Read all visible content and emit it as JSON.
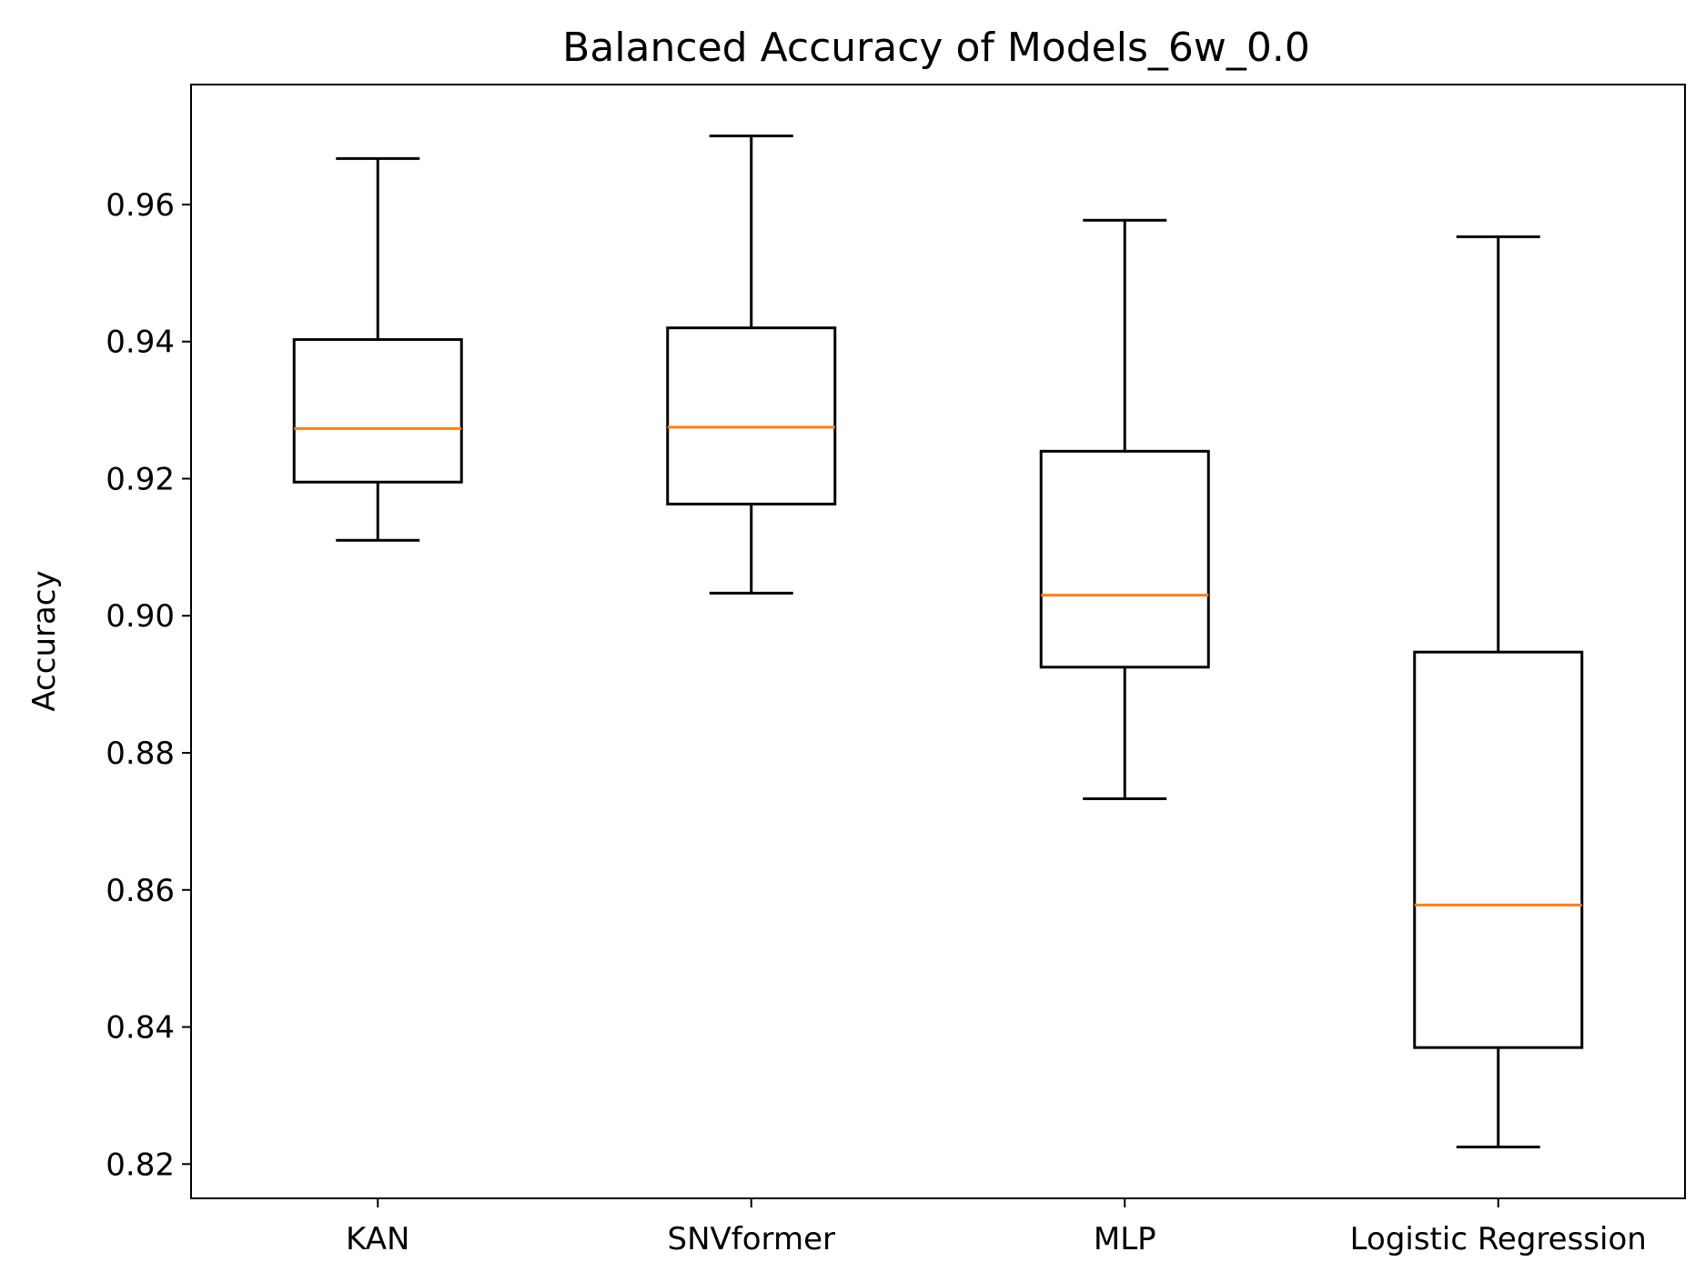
{
  "chart_data": {
    "type": "box",
    "title": "Balanced Accuracy of Models_6w_0.0",
    "xlabel": "",
    "ylabel": "Accuracy",
    "ylim": [
      0.815,
      0.9775
    ],
    "yticks": [
      "0.82",
      "0.84",
      "0.86",
      "0.88",
      "0.90",
      "0.92",
      "0.94",
      "0.96"
    ],
    "categories": [
      "KAN",
      "SNVformer",
      "MLP",
      "Logistic Regression"
    ],
    "boxes": [
      {
        "whisker_low": 0.911,
        "q1": 0.9195,
        "median": 0.9273,
        "q3": 0.9403,
        "whisker_high": 0.9667
      },
      {
        "whisker_low": 0.9033,
        "q1": 0.9163,
        "median": 0.9275,
        "q3": 0.942,
        "whisker_high": 0.97
      },
      {
        "whisker_low": 0.8733,
        "q1": 0.8925,
        "median": 0.903,
        "q3": 0.924,
        "whisker_high": 0.9577
      },
      {
        "whisker_low": 0.8225,
        "q1": 0.837,
        "median": 0.8578,
        "q3": 0.8947,
        "whisker_high": 0.9553
      }
    ],
    "grid": false,
    "colors": {
      "box": "#000000",
      "median": "#ff7f0e"
    }
  }
}
